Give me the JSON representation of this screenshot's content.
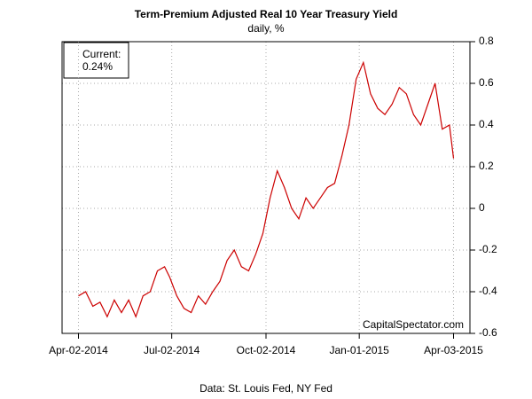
{
  "chart_data": {
    "type": "line",
    "title": "Term-Premium Adjusted Real 10 Year Treasury Yield",
    "subtitle": "daily, %",
    "annotations": [
      "Current:",
      "0.24%"
    ],
    "watermark": "CapitalSpectator.com",
    "source": "Data: St. Louis Fed, NY Fed",
    "color": "#cc0000",
    "grid": true,
    "x": [
      "2014-04-02",
      "2014-04-09",
      "2014-04-16",
      "2014-04-23",
      "2014-04-30",
      "2014-05-07",
      "2014-05-14",
      "2014-05-21",
      "2014-05-28",
      "2014-06-04",
      "2014-06-11",
      "2014-06-18",
      "2014-06-25",
      "2014-06-30",
      "2014-07-07",
      "2014-07-14",
      "2014-07-21",
      "2014-07-28",
      "2014-08-04",
      "2014-08-11",
      "2014-08-18",
      "2014-08-25",
      "2014-09-01",
      "2014-09-08",
      "2014-09-15",
      "2014-09-22",
      "2014-09-29",
      "2014-10-06",
      "2014-10-13",
      "2014-10-20",
      "2014-10-27",
      "2014-11-03",
      "2014-11-10",
      "2014-11-17",
      "2014-11-24",
      "2014-12-01",
      "2014-12-08",
      "2014-12-15",
      "2014-12-22",
      "2014-12-29",
      "2015-01-05",
      "2015-01-12",
      "2015-01-19",
      "2015-01-26",
      "2015-02-02",
      "2015-02-09",
      "2015-02-16",
      "2015-02-23",
      "2015-03-02",
      "2015-03-09",
      "2015-03-16",
      "2015-03-23",
      "2015-03-30",
      "2015-04-03"
    ],
    "values": [
      -0.42,
      -0.4,
      -0.47,
      -0.45,
      -0.52,
      -0.44,
      -0.5,
      -0.44,
      -0.52,
      -0.42,
      -0.4,
      -0.3,
      -0.28,
      -0.33,
      -0.42,
      -0.48,
      -0.5,
      -0.42,
      -0.46,
      -0.4,
      -0.35,
      -0.25,
      -0.2,
      -0.28,
      -0.3,
      -0.22,
      -0.12,
      0.05,
      0.18,
      0.1,
      0.0,
      -0.05,
      0.05,
      0.0,
      0.05,
      0.1,
      0.12,
      0.25,
      0.4,
      0.62,
      0.7,
      0.55,
      0.48,
      0.45,
      0.5,
      0.58,
      0.55,
      0.45,
      0.4,
      0.5,
      0.6,
      0.38,
      0.4,
      0.24
    ],
    "xlim": [
      "2014-03-17",
      "2015-04-19"
    ],
    "xticks": [
      {
        "value": "2014-04-02",
        "label": "Apr-02-2014"
      },
      {
        "value": "2014-07-02",
        "label": "Jul-02-2014"
      },
      {
        "value": "2014-10-02",
        "label": "Oct-02-2014"
      },
      {
        "value": "2015-01-01",
        "label": "Jan-01-2015"
      },
      {
        "value": "2015-04-03",
        "label": "Apr-03-2015"
      }
    ],
    "ylim": [
      -0.6,
      0.8
    ],
    "yticks": [
      -0.6,
      -0.4,
      -0.2,
      0,
      0.2,
      0.4,
      0.6,
      0.8
    ]
  }
}
